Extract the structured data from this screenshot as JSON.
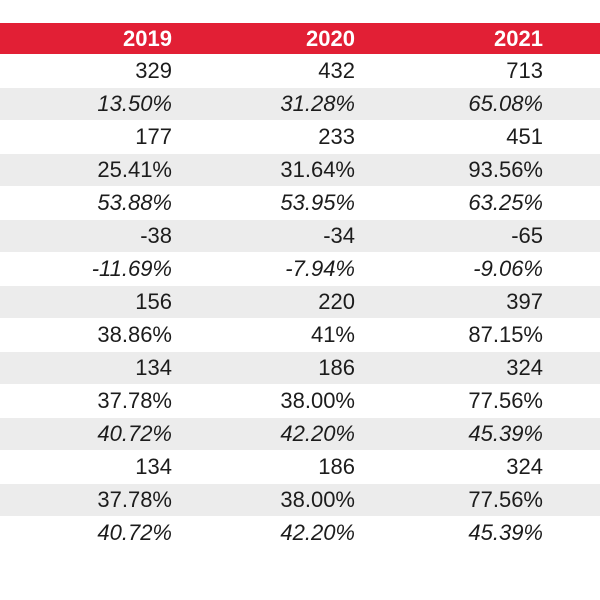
{
  "table": {
    "header": [
      "2019",
      "2020",
      "2021"
    ],
    "header_color": "#e21f35",
    "rows": [
      {
        "values": [
          "329",
          "432",
          "713"
        ],
        "italic": false,
        "shaded": false
      },
      {
        "values": [
          "13.50%",
          "31.28%",
          "65.08%"
        ],
        "italic": true,
        "shaded": true
      },
      {
        "values": [
          "177",
          "233",
          "451"
        ],
        "italic": false,
        "shaded": false
      },
      {
        "values": [
          "25.41%",
          "31.64%",
          "93.56%"
        ],
        "italic": false,
        "shaded": true
      },
      {
        "values": [
          "53.88%",
          "53.95%",
          "63.25%"
        ],
        "italic": true,
        "shaded": false
      },
      {
        "values": [
          "-38",
          "-34",
          "-65"
        ],
        "italic": false,
        "shaded": true
      },
      {
        "values": [
          "-11.69%",
          "-7.94%",
          "-9.06%"
        ],
        "italic": true,
        "shaded": false
      },
      {
        "values": [
          "156",
          "220",
          "397"
        ],
        "italic": false,
        "shaded": true
      },
      {
        "values": [
          "38.86%",
          "41%",
          "87.15%"
        ],
        "italic": false,
        "shaded": false
      },
      {
        "values": [
          "134",
          "186",
          "324"
        ],
        "italic": false,
        "shaded": true
      },
      {
        "values": [
          "37.78%",
          "38.00%",
          "77.56%"
        ],
        "italic": false,
        "shaded": false
      },
      {
        "values": [
          "40.72%",
          "42.20%",
          "45.39%"
        ],
        "italic": true,
        "shaded": true
      },
      {
        "values": [
          "134",
          "186",
          "324"
        ],
        "italic": false,
        "shaded": false
      },
      {
        "values": [
          "37.78%",
          "38.00%",
          "77.56%"
        ],
        "italic": false,
        "shaded": true
      },
      {
        "values": [
          "40.72%",
          "42.20%",
          "45.39%"
        ],
        "italic": true,
        "shaded": false
      }
    ]
  }
}
